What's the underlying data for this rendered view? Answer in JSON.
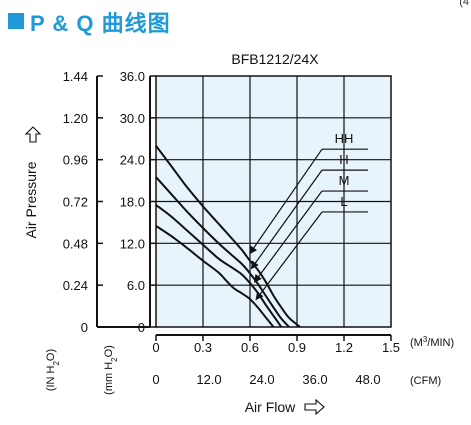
{
  "header": {
    "title": "P & Q 曲线图",
    "corner_mark": "(4"
  },
  "chart_data": {
    "type": "line",
    "title": "BFB1212/24X",
    "xlabel": "Air Flow",
    "ylabel": "Air Pressure",
    "x_primary": {
      "unit": "(M3/MIN)",
      "ticks": [
        "0",
        "0.3",
        "0.6",
        "0.9",
        "1.2",
        "1.5"
      ],
      "range": [
        0,
        1.5
      ]
    },
    "x_secondary": {
      "unit": "(CFM)",
      "ticks": [
        "0",
        "12.0",
        "24.0",
        "36.0",
        "48.0"
      ]
    },
    "y_inner": {
      "unit": "(mm H2O)",
      "ticks": [
        "0",
        "6.0",
        "12.0",
        "18.0",
        "24.0",
        "30.0",
        "36.0"
      ],
      "range": [
        0,
        36
      ]
    },
    "y_outer": {
      "unit": "(IN H2O)",
      "ticks": [
        "0",
        "0.24",
        "0.48",
        "0.72",
        "0.96",
        "1.20",
        "1.44"
      ]
    },
    "grid": true,
    "series": [
      {
        "name": "HH",
        "x": [
          0,
          0.1,
          0.2,
          0.3,
          0.4,
          0.5,
          0.55,
          0.6,
          0.65,
          0.7,
          0.75,
          0.8,
          0.85,
          0.92
        ],
        "y": [
          26.0,
          23.0,
          20.0,
          17.3,
          14.8,
          12.3,
          11.0,
          9.5,
          8.2,
          6.5,
          4.5,
          2.8,
          1.3,
          0
        ]
      },
      {
        "name": "H",
        "x": [
          0,
          0.1,
          0.2,
          0.3,
          0.4,
          0.5,
          0.55,
          0.6,
          0.65,
          0.7,
          0.75,
          0.8,
          0.85
        ],
        "y": [
          21.5,
          19.0,
          16.5,
          14.2,
          12.0,
          10.0,
          9.0,
          7.7,
          6.2,
          4.5,
          2.8,
          1.2,
          0
        ]
      },
      {
        "name": "M",
        "x": [
          0,
          0.1,
          0.2,
          0.3,
          0.4,
          0.5,
          0.55,
          0.6,
          0.65,
          0.7,
          0.75,
          0.8
        ],
        "y": [
          17.5,
          15.8,
          13.8,
          11.8,
          9.8,
          8.3,
          7.5,
          6.3,
          4.9,
          3.2,
          1.6,
          0
        ]
      },
      {
        "name": "L",
        "x": [
          0,
          0.1,
          0.2,
          0.3,
          0.4,
          0.45,
          0.5,
          0.55,
          0.6,
          0.65,
          0.7,
          0.75
        ],
        "y": [
          14.5,
          13.0,
          11.3,
          9.5,
          7.8,
          6.6,
          5.5,
          4.8,
          4.0,
          2.8,
          1.4,
          0
        ]
      }
    ],
    "annotations": [
      "HH",
      "H",
      "M",
      "L"
    ]
  }
}
